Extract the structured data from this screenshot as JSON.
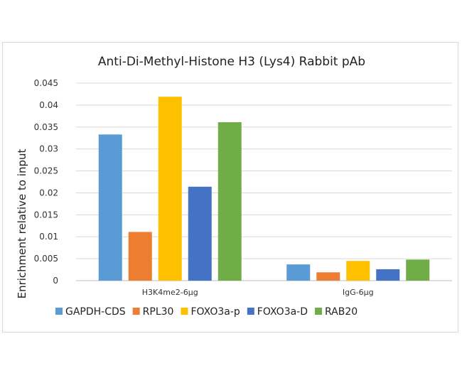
{
  "chart_data": {
    "type": "bar",
    "title": "Anti-Di-Methyl-Histone H3 (Lys4) Rabbit pAb",
    "xlabel": "",
    "ylabel": "Enrichment relative to input",
    "categories": [
      "H3K4me2-6μg",
      "IgG-6μg"
    ],
    "ylim": [
      0,
      0.045
    ],
    "yticks": [
      "0",
      "0.005",
      "0.01",
      "0.015",
      "0.02",
      "0.025",
      "0.03",
      "0.035",
      "0.04",
      "0.045"
    ],
    "grid": true,
    "legend_position": "bottom",
    "series": [
      {
        "name": "GAPDH-CDS",
        "color": "#5b9bd5",
        "values": [
          0.0333,
          0.0037
        ]
      },
      {
        "name": "RPL30",
        "color": "#ed7d31",
        "values": [
          0.0111,
          0.0019
        ]
      },
      {
        "name": "FOXO3a-p",
        "color": "#ffc000",
        "values": [
          0.0419,
          0.0045
        ]
      },
      {
        "name": "FOXO3a-D",
        "color": "#4472c4",
        "values": [
          0.0214,
          0.0026
        ]
      },
      {
        "name": "RAB20",
        "color": "#70ad47",
        "values": [
          0.0361,
          0.0048
        ]
      }
    ]
  }
}
